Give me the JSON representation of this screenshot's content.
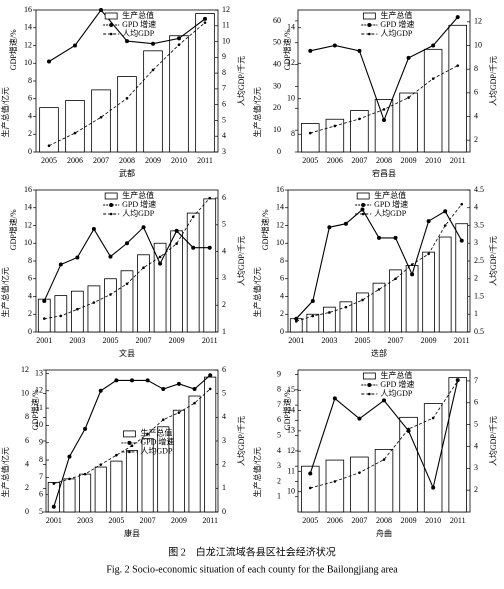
{
  "chart_data": [
    {
      "type": "combo",
      "title": "武都",
      "categories": [
        "2005",
        "2006",
        "2007",
        "2008",
        "2009",
        "2010",
        "2011"
      ],
      "ylabel": "生产总值/亿元",
      "y3label": "GDP增速/%",
      "y2label": "人均GDP/千元",
      "ylim": [
        0,
        16
      ],
      "yticks": [
        0,
        2,
        4,
        6,
        8,
        10,
        12,
        14,
        16
      ],
      "y2lim": [
        3,
        12
      ],
      "y2ticks": [
        3,
        4,
        5,
        6,
        7,
        8,
        9,
        10,
        11,
        12
      ],
      "legend": "upper center",
      "series": [
        {
          "name": "生产总值",
          "type": "bar",
          "color": "#ffffff",
          "values": [
            5.0,
            5.8,
            7.0,
            8.5,
            11.4,
            13.1,
            15.6
          ]
        },
        {
          "name": "GPD 增速",
          "type": "line",
          "line_style": "solid",
          "color": "#000000",
          "values": [
            10.2,
            12.0,
            16.0,
            12.5,
            12.2,
            12.8,
            15.0
          ]
        },
        {
          "name": "人均GDP",
          "type": "line",
          "line_style": "dashed",
          "axis": "y2",
          "color": "#000000",
          "values": [
            3.4,
            4.2,
            5.2,
            6.4,
            8.2,
            9.8,
            11.2
          ]
        }
      ]
    },
    {
      "type": "combo",
      "title": "宕昌县",
      "categories": [
        "2005",
        "2006",
        "2007",
        "2008",
        "2009",
        "2010",
        "2011"
      ],
      "ylabel": "生产总值/亿元",
      "y3label": "GDP增速/%",
      "y2label": "人均GDP/千元",
      "ylim": [
        0,
        65
      ],
      "yticks": [
        0,
        10,
        20,
        30,
        40,
        50,
        60
      ],
      "y3lim": [
        7,
        15
      ],
      "y3ticks": [
        8,
        10,
        12,
        14
      ],
      "y2lim": [
        1,
        13
      ],
      "y2ticks": [
        2,
        4,
        6,
        8,
        10,
        12
      ],
      "legend": "upper center",
      "series": [
        {
          "name": "生产总值",
          "type": "bar",
          "color": "#ffffff",
          "values": [
            13,
            15,
            19,
            24,
            27,
            47,
            58
          ]
        },
        {
          "name": "GPD 增速",
          "type": "line",
          "line_style": "solid",
          "axis": "y3",
          "color": "#000000",
          "values": [
            12.7,
            13.0,
            12.7,
            8.8,
            12.3,
            13.0,
            14.6
          ]
        },
        {
          "name": "人均GDP",
          "type": "line",
          "line_style": "dashed",
          "axis": "y2",
          "color": "#000000",
          "values": [
            2.6,
            3.2,
            3.8,
            4.6,
            5.6,
            7.2,
            8.3
          ]
        }
      ]
    },
    {
      "type": "combo",
      "title": "文县",
      "categories": [
        "2001",
        null,
        "2003",
        null,
        "2005",
        null,
        "2007",
        null,
        "2009",
        null,
        "2011"
      ],
      "ylabel": "生产总值/亿元",
      "y3label": "GDP增速/%",
      "y2label": "人均GDP/千元",
      "ylim": [
        0,
        16
      ],
      "yticks": [
        0,
        2,
        4,
        6,
        8,
        10,
        12,
        14,
        16
      ],
      "y2lim": [
        1,
        6.3
      ],
      "y2ticks": [
        1,
        2,
        3,
        4,
        5,
        6
      ],
      "legend": "upper center",
      "series": [
        {
          "name": "生产总值",
          "type": "bar",
          "color": "#ffffff",
          "values": [
            3.7,
            4.1,
            4.6,
            5.2,
            6.0,
            6.9,
            8.7,
            10.0,
            11.4,
            13.4,
            15.0
          ]
        },
        {
          "name": "GPD 增速",
          "type": "line",
          "line_style": "solid",
          "color": "#000000",
          "values": [
            3.5,
            7.6,
            8.4,
            11.6,
            8.5,
            10.0,
            11.8,
            7.7,
            11.4,
            9.5,
            9.5
          ]
        },
        {
          "name": "人均GDP",
          "type": "line",
          "line_style": "dashed",
          "axis": "y2",
          "color": "#000000",
          "values": [
            1.5,
            1.6,
            1.85,
            2.1,
            2.4,
            2.8,
            3.4,
            3.8,
            4.3,
            5.3,
            6.0
          ]
        }
      ]
    },
    {
      "type": "combo",
      "title": "迭部",
      "categories": [
        "2001",
        null,
        "2003",
        null,
        "2005",
        null,
        "2007",
        null,
        "2009",
        null,
        "2011"
      ],
      "ylabel": "生产总值/亿元",
      "y3label": "GDP增速/%",
      "y2label": "人均GDP/千元",
      "ylim": [
        0,
        16
      ],
      "yticks": [
        0,
        2,
        4,
        6,
        8,
        10,
        12,
        14,
        16
      ],
      "y2lim": [
        0.5,
        4.5
      ],
      "y2ticks": [
        0.5,
        1,
        1.5,
        2,
        2.5,
        3,
        3.5,
        4,
        4.5
      ],
      "legend": "upper center",
      "series": [
        {
          "name": "生产总值",
          "type": "bar",
          "color": "#ffffff",
          "values": [
            1.5,
            2.0,
            2.8,
            3.4,
            4.4,
            5.5,
            7.0,
            7.5,
            9.0,
            10.7,
            12.2
          ]
        },
        {
          "name": "GPD 增速",
          "type": "line",
          "line_style": "solid",
          "color": "#000000",
          "values": [
            1.5,
            3.5,
            11.8,
            12.2,
            13.8,
            10.6,
            10.6,
            6.5,
            12.5,
            13.6,
            10.3
          ]
        },
        {
          "name": "人均GDP",
          "type": "line",
          "line_style": "dashed",
          "axis": "y2",
          "color": "#000000",
          "values": [
            0.8,
            0.95,
            1.05,
            1.2,
            1.4,
            1.7,
            2.0,
            2.4,
            2.7,
            3.5,
            4.1
          ]
        }
      ]
    },
    {
      "type": "combo",
      "title": "康县",
      "categories": [
        "2001",
        null,
        "2003",
        null,
        "2005",
        null,
        "2007",
        null,
        "2009",
        null,
        "2011"
      ],
      "ylabel": "生产总值/亿元",
      "y3label": "GDP增速/%",
      "y2label": "人均GDP/千元",
      "ylim": [
        0,
        12
      ],
      "yticks": [
        0,
        2,
        4,
        6,
        8,
        10,
        12
      ],
      "y3lim": [
        5,
        13.2
      ],
      "y3ticks": [
        5,
        6,
        7,
        8,
        9,
        10,
        11,
        12,
        13
      ],
      "y2lim": [
        0,
        6
      ],
      "y2ticks": [
        0,
        1,
        2,
        3,
        4,
        5,
        6
      ],
      "legend": "center",
      "series": [
        {
          "name": "生产总值",
          "type": "bar",
          "color": "#ffffff",
          "values": [
            2.5,
            2.8,
            3.2,
            3.8,
            4.3,
            5.2,
            6.2,
            7.2,
            8.6,
            9.8,
            11.4
          ]
        },
        {
          "name": "GPD 增速",
          "type": "line",
          "line_style": "solid",
          "axis": "y3",
          "color": "#000000",
          "values": [
            5.3,
            8.2,
            9.8,
            12.0,
            12.6,
            12.6,
            12.6,
            12.1,
            12.4,
            12.1,
            12.9
          ]
        },
        {
          "name": "人均GDP",
          "type": "line",
          "line_style": "dashed",
          "axis": "y2",
          "color": "#000000",
          "values": [
            1.2,
            1.4,
            1.6,
            2.0,
            2.4,
            2.8,
            3.3,
            3.9,
            4.2,
            4.6,
            5.2
          ]
        }
      ]
    },
    {
      "type": "combo",
      "title": "舟曲",
      "categories": [
        "2005",
        "2006",
        "2007",
        "2008",
        "2009",
        "2010",
        "2011"
      ],
      "ylabel": "生产总值/亿元",
      "y3label": "GDP增速/%",
      "y2label": "人均GDP/千元",
      "ylim": [
        0,
        9.3
      ],
      "yticks": [
        1,
        2,
        3,
        4,
        5,
        6,
        7,
        8,
        9
      ],
      "y3lim": [
        9,
        16
      ],
      "y3ticks": [
        10,
        11,
        12,
        13,
        14,
        15
      ],
      "y2lim": [
        1,
        7.5
      ],
      "y2ticks": [
        2,
        3,
        4,
        5,
        6,
        7
      ],
      "legend": "upper center",
      "series": [
        {
          "name": "生产总值",
          "type": "bar",
          "color": "#ffffff",
          "values": [
            3.0,
            3.4,
            3.6,
            4.1,
            6.2,
            7.1,
            8.8
          ]
        },
        {
          "name": "GPD 增速",
          "type": "line",
          "line_style": "solid",
          "axis": "y3",
          "color": "#000000",
          "values": [
            10.9,
            14.6,
            13.6,
            14.5,
            13.0,
            10.2,
            15.5
          ]
        },
        {
          "name": "人均GDP",
          "type": "line",
          "line_style": "dashed",
          "axis": "y2",
          "color": "#000000",
          "values": [
            2.1,
            2.4,
            2.8,
            3.4,
            4.8,
            5.3,
            7.0
          ]
        }
      ]
    }
  ],
  "caption": {
    "cn": "图 2　白龙江流域各县区社会经济状况",
    "en": "Fig. 2  Socio-economic situation of each county for the Bailongjiang area"
  }
}
